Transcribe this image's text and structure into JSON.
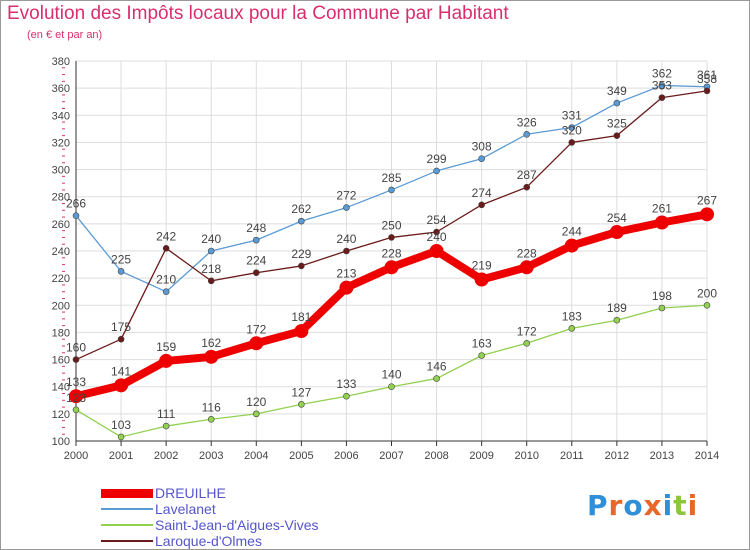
{
  "title": "Evolution des Impôts locaux pour la Commune par Habitant",
  "subtitle": "(en € et par an)",
  "logo": {
    "text": "Proxiti",
    "letter_colors": [
      "#2f8fd8",
      "#e8682a",
      "#2f8fd8",
      "#e8682a",
      "#2f8fd8",
      "#8cc63f",
      "#e8682a"
    ]
  },
  "colors": {
    "grid": "#dddddd",
    "axis": "#333333",
    "tick_marks": "#e0306a",
    "label": "#444444",
    "legend_text": "#5555cc"
  },
  "chart_data": {
    "type": "line",
    "title": "Evolution des Impôts locaux pour la Commune par Habitant",
    "subtitle": "(en € et par an)",
    "x": [
      "2000",
      "2001",
      "2002",
      "2003",
      "2004",
      "2005",
      "2006",
      "2007",
      "2008",
      "2009",
      "2010",
      "2011",
      "2012",
      "2013",
      "2014"
    ],
    "ylim": [
      100,
      380
    ],
    "yticks": [
      100,
      120,
      140,
      160,
      180,
      200,
      220,
      240,
      260,
      280,
      300,
      320,
      340,
      360,
      380
    ],
    "grid": true,
    "legend_position": "bottom-left",
    "series": [
      {
        "name": "DREUILHE",
        "color": "#ee0000",
        "emphasis": true,
        "values": [
          133,
          141,
          159,
          162,
          172,
          181,
          213,
          228,
          240,
          219,
          228,
          244,
          254,
          261,
          267
        ]
      },
      {
        "name": "Lavelanet",
        "color": "#5b9bd5",
        "emphasis": false,
        "values": [
          266,
          225,
          210,
          240,
          248,
          262,
          272,
          285,
          299,
          308,
          326,
          331,
          349,
          362,
          361
        ]
      },
      {
        "name": "Saint-Jean-d'Aigues-Vives",
        "color": "#92d050",
        "emphasis": false,
        "values": [
          123,
          103,
          111,
          116,
          120,
          127,
          133,
          140,
          146,
          163,
          172,
          183,
          189,
          198,
          200
        ]
      },
      {
        "name": "Laroque-d'Olmes",
        "color": "#6b1a1a",
        "emphasis": false,
        "values": [
          160,
          175,
          242,
          218,
          224,
          229,
          240,
          250,
          254,
          274,
          287,
          320,
          325,
          353,
          358
        ]
      }
    ],
    "data_labels": {
      "DREUILHE": [
        "133",
        "141",
        "159",
        "162",
        "172",
        "181",
        "213",
        "228",
        "240",
        "219",
        "228",
        "244",
        "254",
        "261",
        "267"
      ],
      "Lavelanet": [
        "266",
        "225",
        "210",
        "240",
        "248",
        "262",
        "272",
        "285",
        "299",
        "308",
        "326",
        "331",
        "349",
        "362",
        "361"
      ],
      "Saint-Jean-d'Aigues-Vives": [
        "123",
        "103",
        "111",
        "116",
        "120",
        "127",
        "133",
        "140",
        "146",
        "163",
        "172",
        "183",
        "189",
        "198",
        "200"
      ],
      "Laroque-d'Olmes": [
        "160",
        "175",
        "242",
        "218",
        "224",
        "229",
        "240",
        "250",
        "254",
        "274",
        "287",
        "320",
        "325",
        "353",
        "358"
      ]
    }
  }
}
